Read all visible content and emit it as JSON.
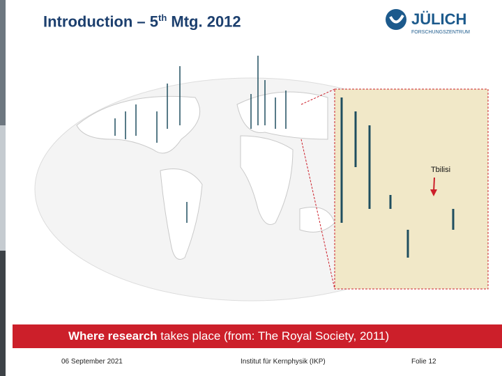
{
  "header": {
    "title": "Introduction – 5",
    "title_sup": "th",
    "title_end": " Mtg. 2012",
    "logo_name": "JÜLICH",
    "logo_sub": "FORSCHUNGSZENTRUM"
  },
  "map": {
    "label": "Tbilisi"
  },
  "caption": {
    "bold": "Where research",
    "rest": " takes place (from: The Royal Society, 2011)"
  },
  "footer": {
    "date": "06 September 2021",
    "institute": "Institut für Kernphysik (IKP)",
    "slide": "Folie 12"
  }
}
